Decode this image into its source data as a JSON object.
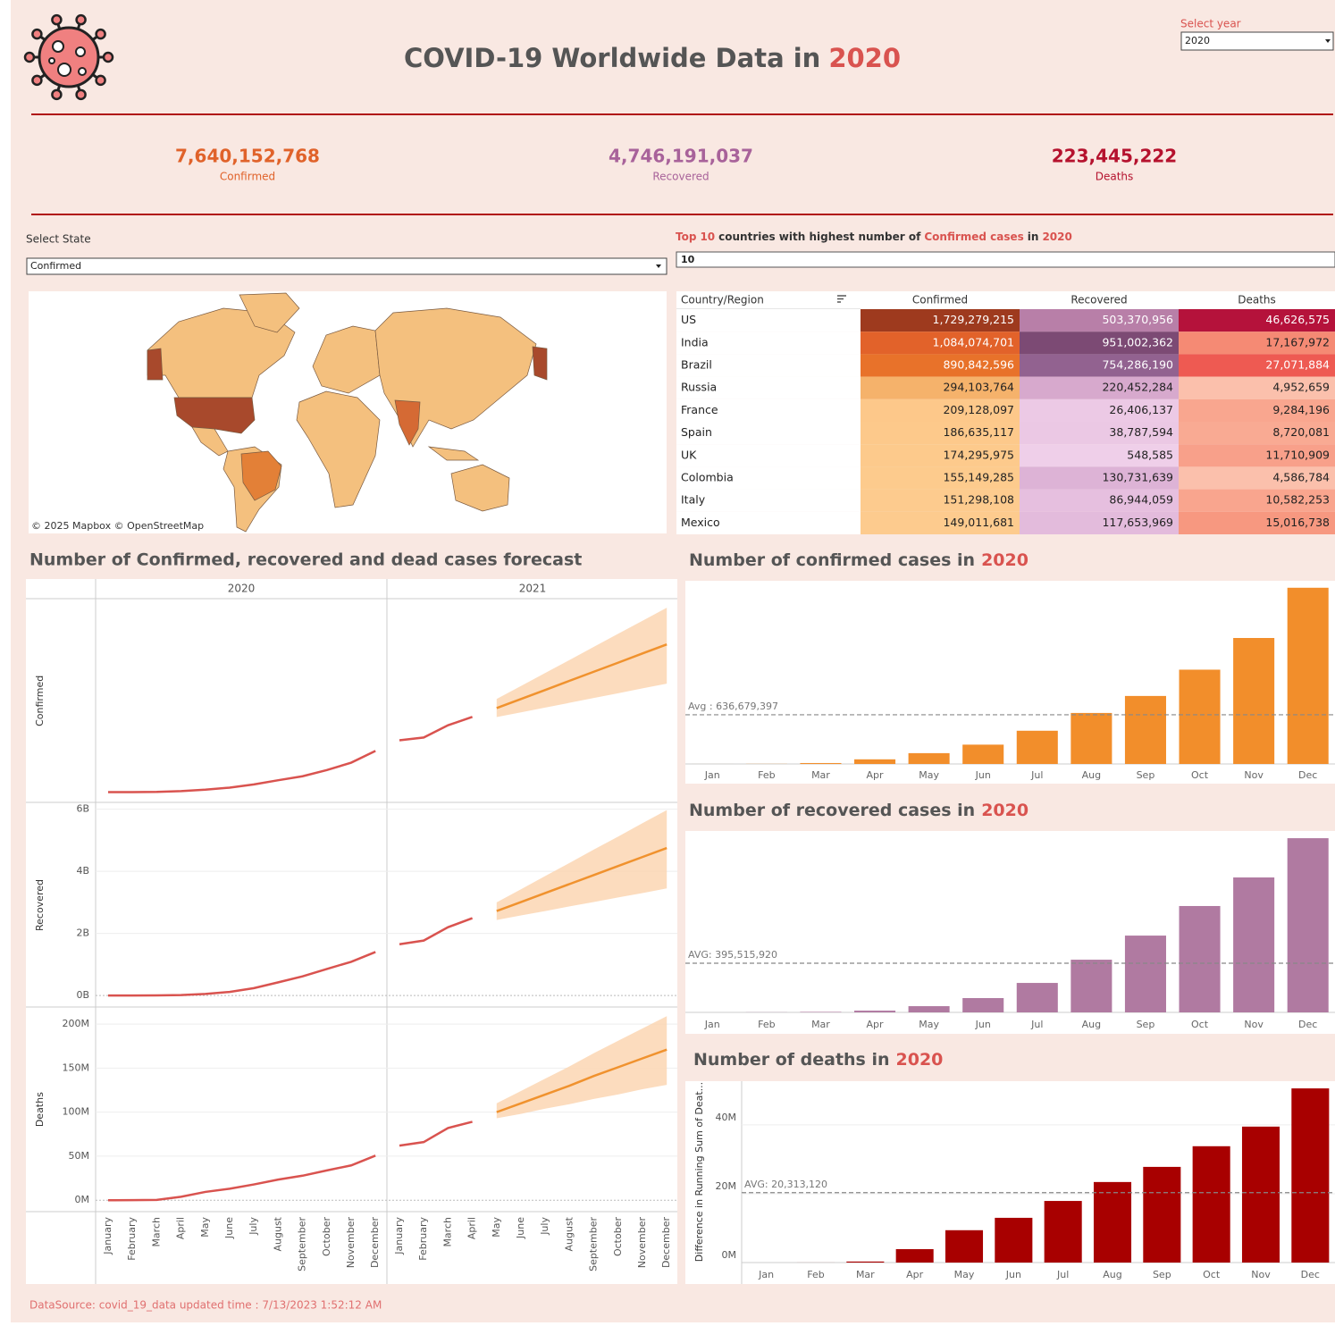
{
  "header": {
    "title": "COVID-19 Worldwide Data in",
    "year": "2020"
  },
  "year_filter": {
    "label": "Select year",
    "value": "2020"
  },
  "kpis": [
    {
      "value": "7,640,152,768",
      "label": "Confirmed",
      "color": "#e0622a"
    },
    {
      "value": "4,746,191,037",
      "label": "Recovered",
      "color": "#a8629a"
    },
    {
      "value": "223,445,222",
      "label": "Deaths",
      "color": "#b5122e"
    }
  ],
  "state_filter": {
    "label": "Select State",
    "value": "Confirmed"
  },
  "top_filter": {
    "segments": [
      {
        "text": "Top",
        "color": "#d9534f"
      },
      {
        "text": "10",
        "color": "#d9534f"
      },
      {
        "text": "countries with highest number of",
        "color": "#333333"
      },
      {
        "text": "Confirmed cases",
        "color": "#d9534f"
      },
      {
        "text": "in",
        "color": "#333333"
      },
      {
        "text": "2020",
        "color": "#d9534f"
      }
    ],
    "value": "10"
  },
  "map": {
    "attribution": "© 2025 Mapbox © OpenStreetMap"
  },
  "table": {
    "columns": [
      "Country/Region",
      "Confirmed",
      "Recovered",
      "Deaths"
    ],
    "rows": [
      [
        "US",
        "1,729,279,215",
        "503,370,956",
        "46,626,575"
      ],
      [
        "India",
        "1,084,074,701",
        "951,002,362",
        "17,167,972"
      ],
      [
        "Brazil",
        "890,842,596",
        "754,286,190",
        "27,071,884"
      ],
      [
        "Russia",
        "294,103,764",
        "220,452,284",
        "4,952,659"
      ],
      [
        "France",
        "209,128,097",
        "26,406,137",
        "9,284,196"
      ],
      [
        "Spain",
        "186,635,117",
        "38,787,594",
        "8,720,081"
      ],
      [
        "UK",
        "174,295,975",
        "548,585",
        "11,710,909"
      ],
      [
        "Colombia",
        "155,149,285",
        "130,731,639",
        "4,586,784"
      ],
      [
        "Italy",
        "151,298,108",
        "86,944,059",
        "10,582,253"
      ],
      [
        "Mexico",
        "149,011,681",
        "117,653,969",
        "15,016,738"
      ]
    ],
    "cell_colors": [
      [
        "#9e3a1e",
        "#b87fa8",
        "#b5123b"
      ],
      [
        "#e2622a",
        "#7c4a74",
        "#f58a74"
      ],
      [
        "#e8722a",
        "#926290",
        "#ee5a52"
      ],
      [
        "#f5b26b",
        "#d7a9cd",
        "#fbc0ac"
      ],
      [
        "#fdc88a",
        "#ecc9e5",
        "#f9a68f"
      ],
      [
        "#fdc98b",
        "#ebc8e4",
        "#f9aa93"
      ],
      [
        "#fdca8c",
        "#efcfe9",
        "#f8a08a"
      ],
      [
        "#fdcb8d",
        "#ddb3d6",
        "#fbc0ac"
      ],
      [
        "#fdcb8e",
        "#e6bfdf",
        "#f9a58e"
      ],
      [
        "#fdcb8e",
        "#e3bbdc",
        "#f79880"
      ]
    ]
  },
  "chart_data": [
    {
      "type": "line",
      "title": "Number of Confirmed, recovered and dead cases forecast",
      "columns": [
        "2020",
        "2021"
      ],
      "categories": [
        "January",
        "February",
        "March",
        "April",
        "May",
        "June",
        "July",
        "August",
        "September",
        "October",
        "November",
        "December",
        "January",
        "February",
        "March",
        "April",
        "May",
        "June",
        "July",
        "August",
        "September",
        "October",
        "November",
        "December"
      ],
      "rows": [
        {
          "name": "Confirmed",
          "ylim": [
            -600000000,
            10700000000
          ],
          "series": [
            {
              "color": "#d9534f",
              "values": [
                200000,
                1500000,
                12000000,
                60000000,
                140000000,
                250000000,
                430000000,
                660000000,
                880000000,
                1220000000,
                1630000000,
                2280000000,
                2870000000,
                3020000000,
                3700000000,
                4160000000,
                null,
                null,
                null,
                null,
                null,
                null,
                null,
                null
              ]
            },
            {
              "color": "#f0922e",
              "values": [
                null,
                null,
                null,
                null,
                null,
                null,
                null,
                null,
                null,
                null,
                null,
                null,
                null,
                null,
                null,
                null,
                4650000000,
                5150000000,
                5650000000,
                6160000000,
                6660000000,
                7160000000,
                7670000000,
                8170000000
              ]
            }
          ],
          "band": {
            "color": "#fbd3ae",
            "low": [
              null,
              null,
              null,
              null,
              null,
              null,
              null,
              null,
              null,
              null,
              null,
              null,
              null,
              null,
              null,
              null,
              4150000000,
              4410000000,
              4680000000,
              4940000000,
              5210000000,
              5470000000,
              5740000000,
              6000000000
            ],
            "high": [
              null,
              null,
              null,
              null,
              null,
              null,
              null,
              null,
              null,
              null,
              null,
              null,
              null,
              null,
              null,
              null,
              5150000000,
              5870000000,
              6590000000,
              7310000000,
              8040000000,
              8760000000,
              9480000000,
              10200000000
            ]
          }
        },
        {
          "name": "Recovered",
          "ylim": [
            -380000000,
            6200000000
          ],
          "yticks": [
            {
              "value": 0,
              "label": "0B"
            },
            {
              "value": 2000000000,
              "label": "2B"
            },
            {
              "value": 4000000000,
              "label": "4B"
            },
            {
              "value": 6000000000,
              "label": "6B"
            }
          ],
          "series": [
            {
              "color": "#d9534f",
              "values": [
                0,
                1000000,
                4000000,
                14000000,
                50000000,
                115000000,
                237000000,
                424000000,
                618000000,
                856000000,
                1086000000,
                1402000000,
                1650000000,
                1770000000,
                2200000000,
                2490000000,
                null,
                null,
                null,
                null,
                null,
                null,
                null,
                null
              ]
            },
            {
              "color": "#f0922e",
              "values": [
                null,
                null,
                null,
                null,
                null,
                null,
                null,
                null,
                null,
                null,
                null,
                null,
                null,
                null,
                null,
                null,
                2720000000,
                3010000000,
                3300000000,
                3590000000,
                3880000000,
                4170000000,
                4460000000,
                4750000000
              ]
            }
          ],
          "band": {
            "color": "#fbd3ae",
            "low": [
              null,
              null,
              null,
              null,
              null,
              null,
              null,
              null,
              null,
              null,
              null,
              null,
              null,
              null,
              null,
              null,
              2430000000,
              2580000000,
              2720000000,
              2870000000,
              3010000000,
              3160000000,
              3300000000,
              3450000000
            ],
            "high": [
              null,
              null,
              null,
              null,
              null,
              null,
              null,
              null,
              null,
              null,
              null,
              null,
              null,
              null,
              null,
              null,
              3000000000,
              3420000000,
              3850000000,
              4270000000,
              4700000000,
              5120000000,
              5550000000,
              5970000000
            ]
          }
        },
        {
          "name": "Deaths",
          "ylim": [
            -13000000,
            219000000
          ],
          "yticks": [
            {
              "value": 0,
              "label": "0M"
            },
            {
              "value": 50000000,
              "label": "50M"
            },
            {
              "value": 100000000,
              "label": "100M"
            },
            {
              "value": 150000000,
              "label": "150M"
            },
            {
              "value": 200000000,
              "label": "200M"
            }
          ],
          "series": [
            {
              "color": "#d9534f",
              "values": [
                0,
                10000,
                300000,
                3900000,
                9400000,
                13000000,
                17900000,
                23400000,
                27800000,
                33800000,
                39500000,
                50600000,
                62000000,
                66000000,
                82000000,
                89000000,
                null,
                null,
                null,
                null,
                null,
                null,
                null,
                null
              ]
            },
            {
              "color": "#f0922e",
              "values": [
                null,
                null,
                null,
                null,
                null,
                null,
                null,
                null,
                null,
                null,
                null,
                null,
                null,
                null,
                null,
                null,
                100000000,
                110000000,
                120000000,
                130000000,
                141000000,
                151000000,
                161000000,
                171000000
              ]
            }
          ],
          "band": {
            "color": "#fbd3ae",
            "low": [
              null,
              null,
              null,
              null,
              null,
              null,
              null,
              null,
              null,
              null,
              null,
              null,
              null,
              null,
              null,
              null,
              93000000,
              98000000,
              104000000,
              109000000,
              115000000,
              120000000,
              126000000,
              131000000
            ],
            "high": [
              null,
              null,
              null,
              null,
              null,
              null,
              null,
              null,
              null,
              null,
              null,
              null,
              null,
              null,
              null,
              null,
              110000000,
              124000000,
              138000000,
              152000000,
              167000000,
              181000000,
              195000000,
              209000000
            ]
          }
        }
      ]
    },
    {
      "type": "bar",
      "title": "Number of confirmed cases in",
      "title_year": "2020",
      "categories": [
        "Jan",
        "Feb",
        "Mar",
        "Apr",
        "May",
        "Jun",
        "Jul",
        "Aug",
        "Sep",
        "Oct",
        "Nov",
        "Dec"
      ],
      "values": [
        200000,
        1500000,
        12000000,
        60000000,
        140000000,
        250000000,
        430000000,
        660000000,
        880000000,
        1220000000,
        1630000000,
        2280000000
      ],
      "color": "#f28e2b",
      "ylim": [
        0,
        2370000000
      ],
      "avg": 636679397,
      "avg_label": "Avg : 636,679,397"
    },
    {
      "type": "bar",
      "title": "Number of recovered cases in",
      "title_year": "2020",
      "categories": [
        "Jan",
        "Feb",
        "Mar",
        "Apr",
        "May",
        "Jun",
        "Jul",
        "Aug",
        "Sep",
        "Oct",
        "Nov",
        "Dec"
      ],
      "values": [
        0,
        1000000,
        4000000,
        14000000,
        50000000,
        115000000,
        237000000,
        424000000,
        618000000,
        856000000,
        1086000000,
        1402000000
      ],
      "color": "#b07aa1",
      "ylim": [
        0,
        1460000000
      ],
      "avg": 395515920,
      "avg_label": "AVG: 395,515,920"
    },
    {
      "type": "bar",
      "title": "Number of deaths in",
      "title_year": "2020",
      "ylabel": "Difference in Running Sum of Deat...",
      "categories": [
        "Jan",
        "Feb",
        "Mar",
        "Apr",
        "May",
        "Jun",
        "Jul",
        "Aug",
        "Sep",
        "Oct",
        "Nov",
        "Dec"
      ],
      "values": [
        0,
        10000,
        300000,
        3900000,
        9400000,
        13000000,
        17900000,
        23400000,
        27800000,
        33800000,
        39500000,
        50600000
      ],
      "color": "#a80000",
      "ylim": [
        0,
        52700000
      ],
      "yticks": [
        {
          "value": 0,
          "label": "0M"
        },
        {
          "value": 20000000,
          "label": "20M"
        },
        {
          "value": 40000000,
          "label": "40M"
        }
      ],
      "avg": 20313120,
      "avg_label": "AVG: 20,313,120"
    }
  ],
  "footer": "DataSource: covid_19_data updated time : 7/13/2023 1:52:12 AM"
}
